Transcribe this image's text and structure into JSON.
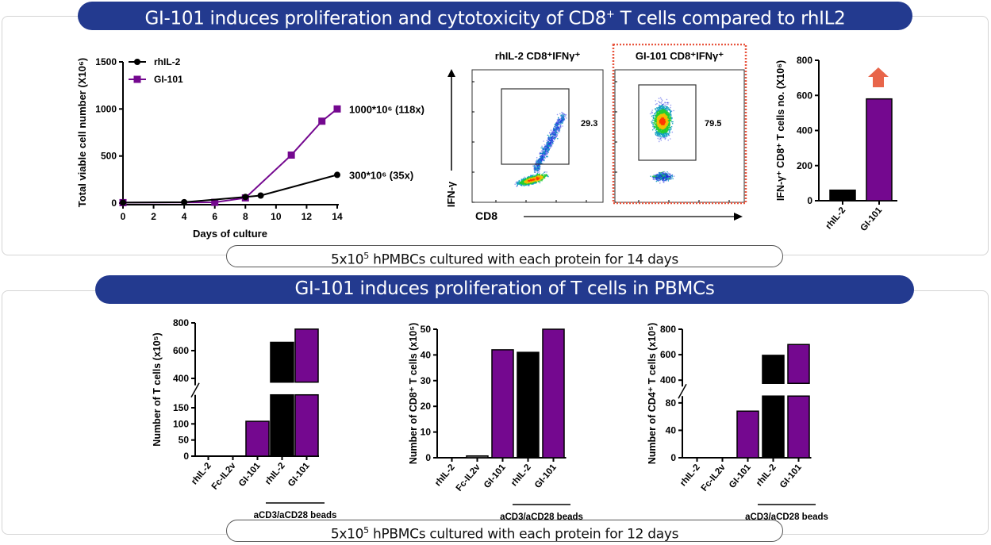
{
  "section1": {
    "banner_pre": "GI-101 induces proliferation and cytotoxicity of CD8",
    "banner_sup": "+",
    "banner_post": " T cells compared to rhIL2",
    "footer_pre": "5x10",
    "footer_sup": "5",
    "footer_post": " hPMBCs cultured with each protein for 14 days"
  },
  "section2": {
    "banner": "GI-101 induces proliferation of  T cells in PBMCs",
    "footer_pre": "5x10",
    "footer_sup": "5",
    "footer_post": " hPBMCs cultured with each protein for 12 days"
  },
  "colors": {
    "rhIL2": "#000000",
    "GI101": "#74088f",
    "FcIL2v": "#808080",
    "banner": "#233a8f",
    "arrow": "#e8654a",
    "highlight_border": "#e8553e"
  },
  "flow": {
    "panels": [
      {
        "title": "rhIL-2 CD8⁺IFNγ⁺",
        "gate_percent": "29.3"
      },
      {
        "title": "GI-101 CD8⁺IFNγ⁺",
        "gate_percent": "79.5",
        "highlighted": true
      }
    ],
    "y_axis_label": "IFN-γ",
    "x_axis_label": "CD8"
  },
  "chart_data": [
    {
      "type": "line",
      "title": "",
      "xlabel": "Days of culture",
      "ylabel": "Total viable cell number (X10⁶)",
      "xlim": [
        0,
        14
      ],
      "ylim": [
        0,
        1500
      ],
      "xticks": [
        0,
        2,
        4,
        6,
        8,
        10,
        12,
        14
      ],
      "yticks": [
        0,
        500,
        1000,
        1500
      ],
      "legend": "top-left",
      "series": [
        {
          "name": "rhIL-2",
          "marker": "circle",
          "x": [
            0,
            4,
            8,
            9,
            14
          ],
          "y": [
            5,
            10,
            65,
            80,
            300
          ],
          "annotation": "300*10⁶ (35x)"
        },
        {
          "name": "GI-101",
          "marker": "square",
          "x": [
            0,
            6,
            8,
            11,
            13,
            14
          ],
          "y": [
            5,
            8,
            55,
            510,
            870,
            1000
          ],
          "annotation": "1000*10⁶ (118x)"
        }
      ]
    },
    {
      "type": "bar",
      "title": "",
      "ylabel": "IFN-γ⁺ CD8⁺ T cells no. (X10⁶)",
      "categories": [
        "rhIL-2",
        "GI-101"
      ],
      "values": [
        60,
        580
      ],
      "ylim": [
        0,
        800
      ],
      "yticks": [
        0,
        200,
        400,
        600,
        800
      ],
      "annotation": "up-arrow above GI-101"
    },
    {
      "type": "bar",
      "title": "",
      "ylabel": "Number of T cells (x10⁵)",
      "categories": [
        "rhIL-2",
        "Fc-IL2v",
        "GI-101",
        "rhIL-2",
        "GI-101"
      ],
      "values": [
        0,
        0,
        108,
        660,
        755
      ],
      "bar_colors": [
        "#000000",
        "#808080",
        "#74088f",
        "#000000",
        "#74088f"
      ],
      "broken_axis": {
        "lower": [
          0,
          190
        ],
        "upper": [
          350,
          800
        ]
      },
      "yticks_lower": [
        0,
        50,
        100,
        150
      ],
      "yticks_upper": [
        400,
        600,
        800
      ],
      "group_label": "aCD3/aCD28 beads",
      "group_span": [
        3,
        4
      ]
    },
    {
      "type": "bar",
      "title": "",
      "ylabel": "Number of CD8⁺ T cells (x10⁵)",
      "categories": [
        "rhIL-2",
        "Fc-IL2v",
        "GI-101",
        "rhIL-2",
        "GI-101"
      ],
      "values": [
        0,
        0.7,
        42,
        41,
        50
      ],
      "bar_colors": [
        "#000000",
        "#808080",
        "#74088f",
        "#000000",
        "#74088f"
      ],
      "ylim": [
        0,
        50
      ],
      "yticks": [
        0,
        10,
        20,
        30,
        40,
        50
      ],
      "group_label": "aCD3/aCD28 beads",
      "group_span": [
        3,
        4
      ]
    },
    {
      "type": "bar",
      "title": "",
      "ylabel": "Number of CD4⁺ T cells (x10⁵)",
      "categories": [
        "rhIL-2",
        "Fc-IL2v",
        "GI-101",
        "rhIL-2",
        "GI-101"
      ],
      "values": [
        0,
        0,
        68,
        595,
        680
      ],
      "bar_colors": [
        "#000000",
        "#808080",
        "#74088f",
        "#000000",
        "#74088f"
      ],
      "broken_axis": {
        "lower": [
          0,
          90
        ],
        "upper": [
          350,
          800
        ]
      },
      "yticks_lower": [
        0,
        40,
        80
      ],
      "yticks_upper": [
        400,
        600,
        800
      ],
      "group_label": "aCD3/aCD28 beads",
      "group_span": [
        3,
        4
      ]
    }
  ]
}
